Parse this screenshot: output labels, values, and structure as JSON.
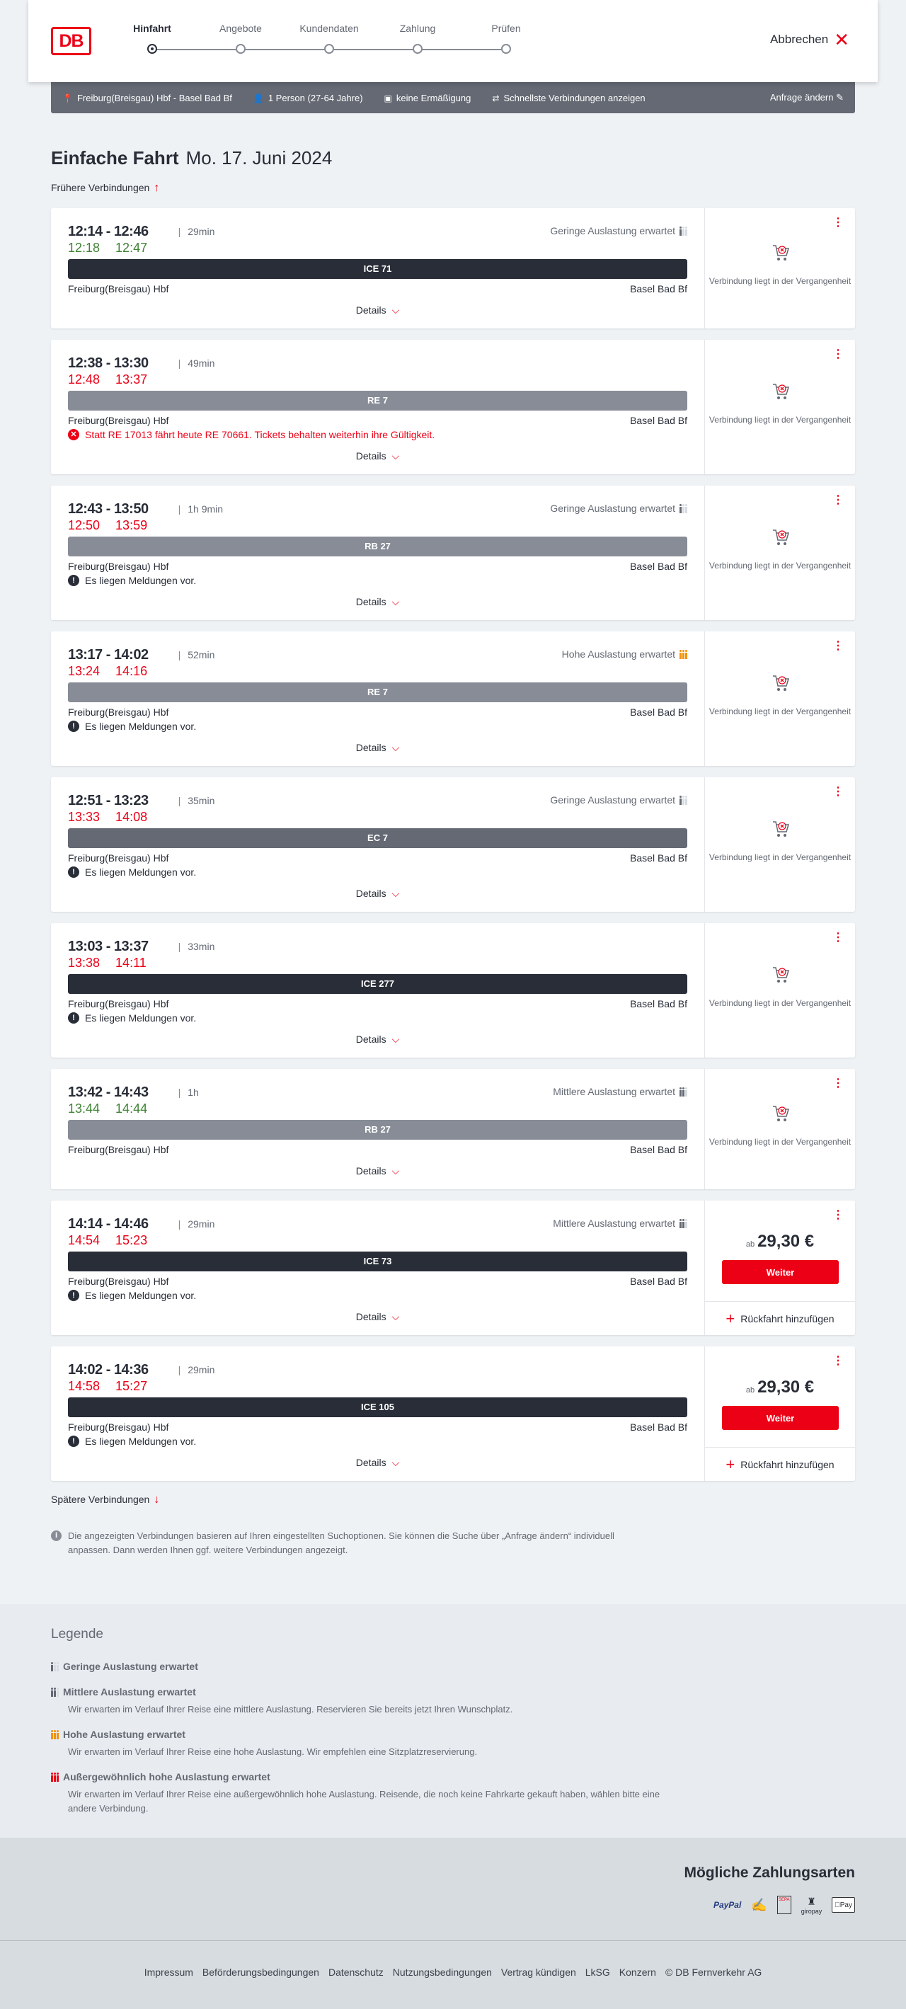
{
  "header": {
    "logo": "DB",
    "steps": [
      "Hinfahrt",
      "Angebote",
      "Kundendaten",
      "Zahlung",
      "Prüfen"
    ],
    "active_step": 0,
    "cancel_label": "Abbrechen"
  },
  "summary": {
    "route": "Freiburg(Breisgau) Hbf - Basel Bad Bf",
    "travellers": "1 Person (27-64 Jahre)",
    "discount": "keine Ermäßigung",
    "fastest": "Schnellste Verbindungen anzeigen",
    "change": "Anfrage ändern"
  },
  "title": {
    "type": "Einfache Fahrt",
    "date": "Mo. 17. Juni 2024"
  },
  "earlier": "Frühere Verbindungen",
  "later": "Spätere Verbindungen",
  "common": {
    "from": "Freiburg(Breisgau) Hbf",
    "to": "Basel Bad Bf",
    "details": "Details",
    "past": "Verbindung liegt in der Vergangenheit",
    "price_prefix": "ab",
    "continue": "Weiter",
    "add_return": "Rückfahrt hinzufügen"
  },
  "colors": {
    "accent": "#ec0016",
    "on_time": "#408335",
    "delayed": "#ec0016",
    "high_load": "#f39200"
  },
  "connections": [
    {
      "times": "12:14 - 12:46",
      "duration": "29min",
      "rt_dep": "12:18",
      "rt_arr": "12:47",
      "rt_status": "on_time",
      "occupancy": "Geringe Auslastung erwartet",
      "occ_level": 1,
      "train": "ICE 71",
      "train_color": "#282d37",
      "message": null,
      "past": true
    },
    {
      "times": "12:38 - 13:30",
      "duration": "49min",
      "rt_dep": "12:48",
      "rt_arr": "13:37",
      "rt_status": "delayed",
      "occupancy": null,
      "occ_level": 0,
      "train": "RE 7",
      "train_color": "#878c96",
      "message": "Statt RE 17013 fährt heute RE 70661. Tickets behalten weiterhin ihre Gültigkeit.",
      "message_type": "error",
      "past": true
    },
    {
      "times": "12:43 - 13:50",
      "duration": "1h 9min",
      "rt_dep": "12:50",
      "rt_arr": "13:59",
      "rt_status": "delayed",
      "occupancy": "Geringe Auslastung erwartet",
      "occ_level": 1,
      "train": "RB 27",
      "train_color": "#878c96",
      "message": "Es liegen Meldungen vor.",
      "message_type": "info",
      "past": true
    },
    {
      "times": "13:17 - 14:02",
      "duration": "52min",
      "rt_dep": "13:24",
      "rt_arr": "14:16",
      "rt_status": "delayed",
      "occupancy": "Hohe Auslastung erwartet",
      "occ_level": 3,
      "train": "RE 7",
      "train_color": "#878c96",
      "message": "Es liegen Meldungen vor.",
      "message_type": "info",
      "past": true
    },
    {
      "times": "12:51 - 13:23",
      "duration": "35min",
      "rt_dep": "13:33",
      "rt_arr": "14:08",
      "rt_status": "delayed",
      "occupancy": "Geringe Auslastung erwartet",
      "occ_level": 1,
      "train": "EC 7",
      "train_color": "#646973",
      "message": "Es liegen Meldungen vor.",
      "message_type": "info",
      "past": true
    },
    {
      "times": "13:03 - 13:37",
      "duration": "33min",
      "rt_dep": "13:38",
      "rt_arr": "14:11",
      "rt_status": "delayed",
      "occupancy": null,
      "occ_level": 0,
      "train": "ICE 277",
      "train_color": "#282d37",
      "message": "Es liegen Meldungen vor.",
      "message_type": "info",
      "past": true
    },
    {
      "times": "13:42 - 14:43",
      "duration": "1h",
      "rt_dep": "13:44",
      "rt_arr": "14:44",
      "rt_status": "on_time",
      "occupancy": "Mittlere Auslastung erwartet",
      "occ_level": 2,
      "train": "RB 27",
      "train_color": "#878c96",
      "message": null,
      "past": true
    },
    {
      "times": "14:14 - 14:46",
      "duration": "29min",
      "rt_dep": "14:54",
      "rt_arr": "15:23",
      "rt_status": "delayed",
      "occupancy": "Mittlere Auslastung erwartet",
      "occ_level": 2,
      "train": "ICE 73",
      "train_color": "#282d37",
      "message": "Es liegen Meldungen vor.",
      "message_type": "info",
      "past": false,
      "price": "29,30 €"
    },
    {
      "times": "14:02 - 14:36",
      "duration": "29min",
      "rt_dep": "14:58",
      "rt_arr": "15:27",
      "rt_status": "delayed",
      "occupancy": null,
      "occ_level": 0,
      "train": "ICE 105",
      "train_color": "#282d37",
      "message": "Es liegen Meldungen vor.",
      "message_type": "info",
      "past": false,
      "price": "29,30 €"
    }
  ],
  "note": "Die angezeigten Verbindungen basieren auf Ihren eingestellten Suchoptionen. Sie können die Suche über „Anfrage ändern“ individuell anpassen. Dann werden Ihnen ggf. weitere Verbindungen angezeigt.",
  "legend": {
    "title": "Legende",
    "items": [
      {
        "label": "Geringe Auslastung erwartet",
        "desc": "",
        "level": 1
      },
      {
        "label": "Mittlere Auslastung erwartet",
        "desc": "Wir erwarten im Verlauf Ihrer Reise eine mittlere Auslastung. Reservieren Sie bereits jetzt Ihren Wunschplatz.",
        "level": 2
      },
      {
        "label": "Hohe Auslastung erwartet",
        "desc": "Wir erwarten im Verlauf Ihrer Reise eine hohe Auslastung. Wir empfehlen eine Sitzplatzreservierung.",
        "level": 3
      },
      {
        "label": "Außergewöhnlich hohe Auslastung erwartet",
        "desc": "Wir erwarten im Verlauf Ihrer Reise eine außergewöhnlich hohe Auslastung. Reisende, die noch keine Fahrkarte gekauft haben, wählen bitte eine andere Verbindung.",
        "level": 4
      }
    ]
  },
  "payment": {
    "title": "Mögliche Zahlungsarten",
    "methods": [
      "PayPal",
      "credit-card-icon",
      "SEPA",
      "giropay",
      "Pay"
    ]
  },
  "footer": {
    "links": [
      "Impressum",
      "Beförderungsbedingungen",
      "Datenschutz",
      "Nutzungsbedingungen",
      "Vertrag kündigen",
      "LkSG",
      "Konzern",
      "© DB Fernverkehr AG"
    ]
  }
}
